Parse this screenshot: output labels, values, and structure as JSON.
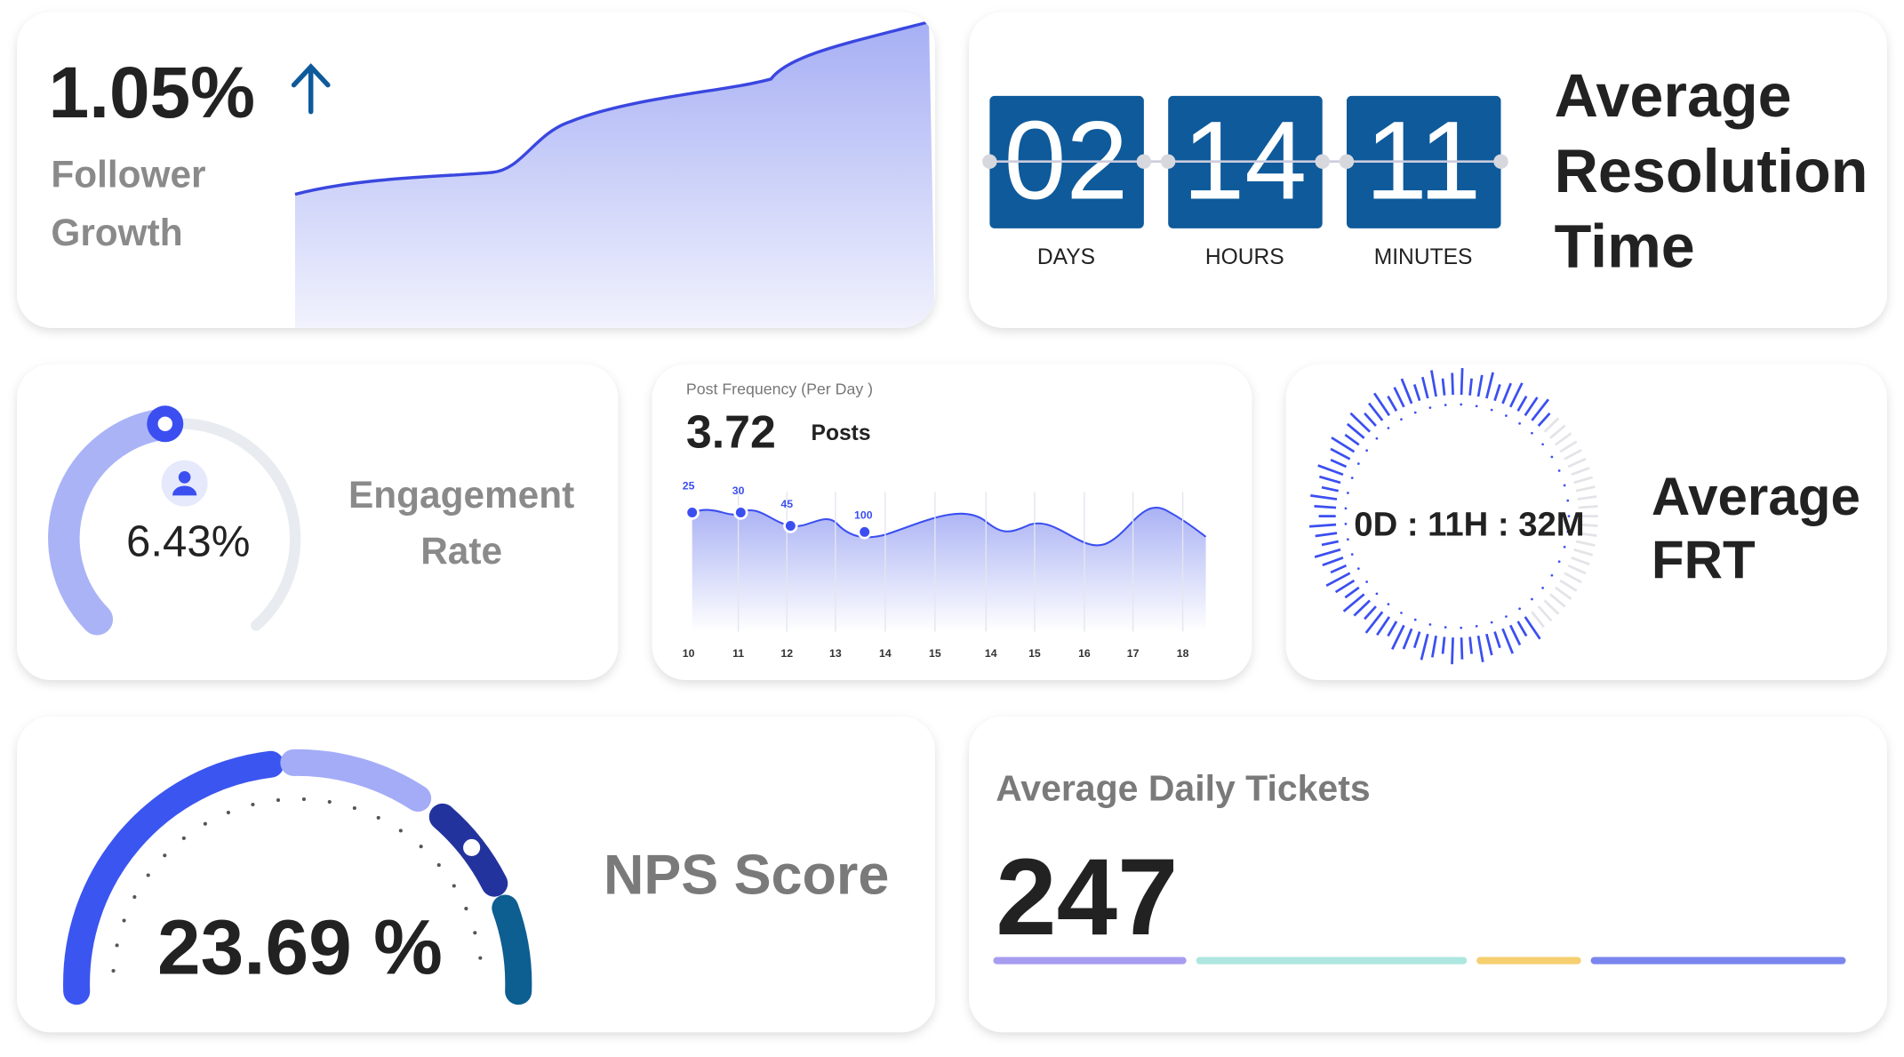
{
  "follower_growth": {
    "value": "1.05%",
    "label": "Follower Growth"
  },
  "resolution_time": {
    "title": "Average Resolution Time",
    "days": "02",
    "hours": "14",
    "minutes": "11",
    "days_label": "DAYS",
    "hours_label": "HOURS",
    "minutes_label": "MINUTES"
  },
  "engagement": {
    "value": "6.43%",
    "label": "Engagement Rate"
  },
  "post_frequency": {
    "title": "Post Frequency (Per Day )",
    "value": "3.72",
    "unit": "Posts",
    "point_labels": [
      "25",
      "30",
      "45",
      "100"
    ],
    "x_labels": [
      "10",
      "11",
      "12",
      "13",
      "14",
      "15",
      "14",
      "15",
      "16",
      "17",
      "18"
    ]
  },
  "frt": {
    "value": "0D : 11H : 32M",
    "title": "Average FRT"
  },
  "nps": {
    "value": "23.69 %",
    "title": "NPS Score"
  },
  "daily_tickets": {
    "title": "Average Daily Tickets",
    "value": "247"
  }
}
